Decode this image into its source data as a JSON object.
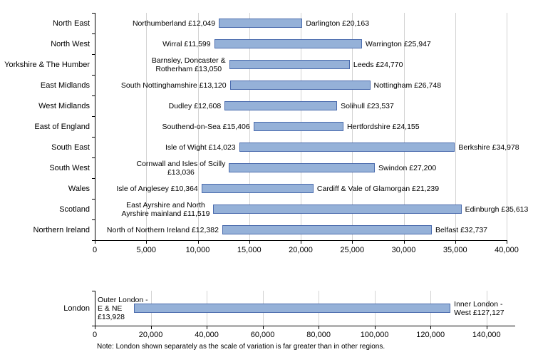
{
  "colors": {
    "bar_fill": "#95B1D8",
    "bar_border": "#4A6BAD",
    "gridline": "#D3D3D3",
    "axis": "#000000",
    "text": "#000000"
  },
  "chart_data": [
    {
      "type": "bar",
      "subtype": "horizontal-range",
      "title": "",
      "xlabel": "",
      "ylabel": "",
      "xlim": [
        0,
        40000
      ],
      "tick_step": 5000,
      "x_tick_labels": [
        "0",
        "5,000",
        "10,000",
        "15,000",
        "20,000",
        "25,000",
        "30,000",
        "35,000",
        "40,000"
      ],
      "grid": true,
      "legend": "none",
      "categories": [
        "North East",
        "North West",
        "Yorkshire & The Humber",
        "East Midlands",
        "West Midlands",
        "East of England",
        "South East",
        "South West",
        "Wales",
        "Scotland",
        "Northern Ireland"
      ],
      "rows": [
        {
          "region": "North East",
          "min": 12049,
          "max": 20163,
          "min_label_lines": [
            "Northumberland £12,049"
          ],
          "max_label_lines": [
            "Darlington £20,163"
          ]
        },
        {
          "region": "North West",
          "min": 11599,
          "max": 25947,
          "min_label_lines": [
            "Wirral £11,599"
          ],
          "max_label_lines": [
            "Warrington £25,947"
          ]
        },
        {
          "region": "Yorkshire & The Humber",
          "min": 13050,
          "max": 24770,
          "min_label_lines": [
            "Barnsley, Doncaster &",
            "Rotherham £13,050"
          ],
          "max_label_lines": [
            "Leeds £24,770"
          ]
        },
        {
          "region": "East Midlands",
          "min": 13120,
          "max": 26748,
          "min_label_lines": [
            "South Nottinghamshire £13,120"
          ],
          "max_label_lines": [
            "Nottingham £26,748"
          ]
        },
        {
          "region": "West Midlands",
          "min": 12608,
          "max": 23537,
          "min_label_lines": [
            "Dudley £12,608"
          ],
          "max_label_lines": [
            "Solihull £23,537"
          ]
        },
        {
          "region": "East of England",
          "min": 15406,
          "max": 24155,
          "min_label_lines": [
            "Southend-on-Sea £15,406"
          ],
          "max_label_lines": [
            "Hertfordshire £24,155"
          ]
        },
        {
          "region": "South East",
          "min": 14023,
          "max": 34978,
          "min_label_lines": [
            "Isle of Wight £14,023"
          ],
          "max_label_lines": [
            "Berkshire £34,978"
          ]
        },
        {
          "region": "South West",
          "min": 13036,
          "max": 27200,
          "min_label_lines": [
            "Cornwall and Isles of Scilly",
            "£13,036"
          ],
          "max_label_lines": [
            "Swindon £27,200"
          ]
        },
        {
          "region": "Wales",
          "min": 10364,
          "max": 21239,
          "min_label_lines": [
            "Isle of Anglesey £10,364"
          ],
          "max_label_lines": [
            "Cardiff & Vale of Glamorgan £21,239"
          ]
        },
        {
          "region": "Scotland",
          "min": 11519,
          "max": 35613,
          "min_label_lines": [
            "East Ayrshire and North",
            "Ayrshire mainland £11,519"
          ],
          "max_label_lines": [
            "Edinburgh £35,613"
          ]
        },
        {
          "region": "Northern Ireland",
          "min": 12382,
          "max": 32737,
          "min_label_lines": [
            "North of Northern Ireland £12,382"
          ],
          "max_label_lines": [
            "Belfast £32,737"
          ]
        }
      ]
    },
    {
      "type": "bar",
      "subtype": "horizontal-range",
      "title": "",
      "xlabel": "",
      "ylabel": "",
      "xlim": [
        0,
        150000
      ],
      "tick_step": 20000,
      "x_tick_labels": [
        "0",
        "20,000",
        "40,000",
        "60,000",
        "80,000",
        "100,000",
        "120,000",
        "140,000"
      ],
      "grid": true,
      "legend": "none",
      "categories": [
        "London"
      ],
      "rows": [
        {
          "region": "London",
          "min": 13928,
          "max": 127127,
          "min_label_lines": [
            "Outer London -",
            "E & NE",
            "£13,928"
          ],
          "max_label_lines": [
            "Inner London -",
            "West £127,127"
          ]
        }
      ],
      "note": "Note: London shown separately as the scale of variation is far greater than in other regions."
    }
  ]
}
